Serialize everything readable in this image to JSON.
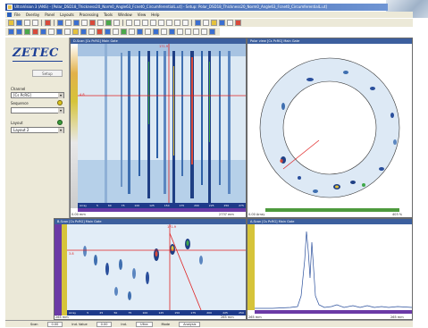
{
  "window": {
    "title": "UltraVision 3 (ANS) - [Polar_DSD18_Thickness20_Norm0_Angle63_Fcnet0_CircumferentialL.ut] - Setup: Polar_DSD18_Thickness20_Norm0_Angle63_Fcnet0_CircumferentialL.ut]"
  },
  "menu": [
    "File",
    "Overlay",
    "Panel",
    "Layouts",
    "Processing",
    "Tools",
    "Window",
    "View",
    "Help"
  ],
  "left_panel": {
    "logo": "ZETEC",
    "setup_button": "Setup",
    "channel_label": "Channel",
    "channel_value": "[Cs PcRG]",
    "sequence_label": "Sequence",
    "sequence_value": "",
    "layout_label": "Layout",
    "layout_value": "Layout 2"
  },
  "panels": {
    "top_left": {
      "header": "D-Scan [Cs PcRG] Main Gate",
      "cursor_readout_top": "171.9",
      "cursor_readout_left": "4.8",
      "left_axis_bottom": "0.00 mm",
      "bottom_axis_right": "2737 mm",
      "bottom_ticks": [
        "Array",
        "5",
        "60",
        "75",
        "100",
        "125",
        "150",
        "175",
        "200",
        "225",
        "250",
        "275"
      ]
    },
    "top_right": {
      "header": "Polar view [Cs PcRG] Main Gate",
      "bottom_left": "0.00 Array",
      "bottom_right": "403 %"
    },
    "bottom_left": {
      "header": "B-Scan [Cs PcRG] Main Gate",
      "cursor_readout_top": "171.9",
      "cursor_readout_left": "3.8",
      "left_axis_bottom": "265 mm",
      "bottom_axis_right": "265 mm",
      "bottom_ticks": [
        "Array",
        "5",
        "25",
        "50",
        "75",
        "100",
        "125",
        "150",
        "175",
        "200",
        "225",
        "250"
      ]
    },
    "bottom_right": {
      "header": "A-Scan [Cs PcRG] Main Gate",
      "bottom_left": "265 mm",
      "bottom_right": "265 mm"
    }
  },
  "status_bar": {
    "label1": "Scan",
    "value1": "0.00",
    "label2": "Ind. Value",
    "value2": "0.00",
    "label3": "Ind.",
    "value3": "Ultra",
    "label4": "Mode",
    "value4": "Analysis"
  },
  "colors": {
    "accent": "#3c5f9e",
    "cursor": "#e02020",
    "strip_yellow": "#d6c43a",
    "strip_green": "#4d9a3d",
    "strip_purple": "#6b3aa6"
  }
}
